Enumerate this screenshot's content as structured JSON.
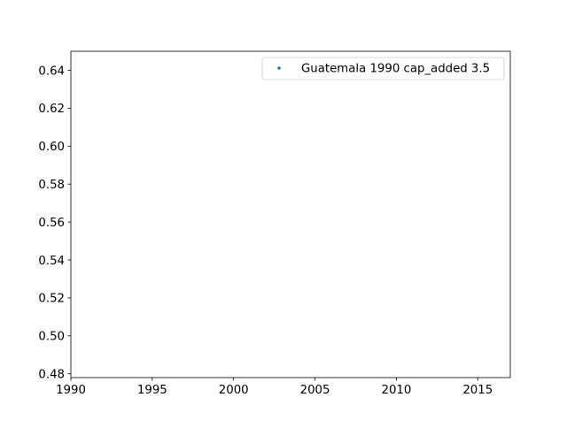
{
  "chart_data": {
    "type": "scatter",
    "title": "",
    "xlabel": "",
    "ylabel": "",
    "xlim": [
      1990,
      2017
    ],
    "ylim": [
      0.478,
      0.65
    ],
    "x_ticks": [
      1990,
      1995,
      2000,
      2005,
      2010,
      2015
    ],
    "y_ticks": [
      0.48,
      0.5,
      0.52,
      0.54,
      0.56,
      0.58,
      0.6,
      0.62,
      0.64
    ],
    "grid": false,
    "legend_position": "top-right",
    "series": [
      {
        "name": "Guatemala 1990 cap_added 3.5",
        "color": "#1f77b4",
        "points": []
      }
    ]
  }
}
